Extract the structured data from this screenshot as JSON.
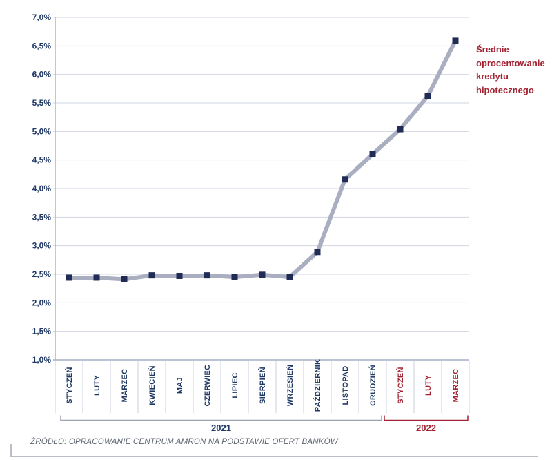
{
  "chart_data": {
    "type": "line",
    "categories": [
      "STYCZEŃ",
      "LUTY",
      "MARZEC",
      "KWIECIEŃ",
      "MAJ",
      "CZERWIEC",
      "LIPIEC",
      "SIERPIEŃ",
      "WRZESIEŃ",
      "PAŹDZIERNIK",
      "LISTOPAD",
      "GRUDZIEŃ",
      "STYCZEŃ",
      "LUTY",
      "MARZEC"
    ],
    "category_years": [
      2021,
      2021,
      2021,
      2021,
      2021,
      2021,
      2021,
      2021,
      2021,
      2021,
      2021,
      2021,
      2022,
      2022,
      2022
    ],
    "values": [
      2.44,
      2.44,
      2.41,
      2.48,
      2.47,
      2.48,
      2.45,
      2.49,
      2.45,
      2.89,
      4.16,
      4.6,
      5.04,
      5.62,
      6.59
    ],
    "series_name": "Średnie oprocentowanie kredytu hipotecznego",
    "ylim": [
      1.0,
      7.0
    ],
    "y_tick_values": [
      7.0,
      6.5,
      6.0,
      5.5,
      5.0,
      4.5,
      4.0,
      3.5,
      3.0,
      2.5,
      2.0,
      1.5,
      1.0
    ],
    "y_tick_labels": [
      "7,0%",
      "6,5%",
      "6,0%",
      "5,5%",
      "5,0%",
      "4,5%",
      "4,0%",
      "3,5%",
      "3,0%",
      "2,5%",
      "2,0%",
      "1,5%",
      "1,0%"
    ],
    "year_groups": [
      {
        "label": "2021",
        "from": 0,
        "to": 11
      },
      {
        "label": "2022",
        "from": 12,
        "to": 14
      }
    ],
    "grid": true,
    "legend_position": "right of last point"
  },
  "legend": {
    "text": "Średnie oprocentowanie kredytu hipotecznego"
  },
  "source": {
    "text": "ŹRÓDŁO: OPRACOWANIE CENTRUM AMRON NA PODSTAWIE OFERT BANKÓW"
  },
  "colors": {
    "navy_text": "#1F3864",
    "red_text": "#A32332",
    "line": "#A9AEC1",
    "marker": "#202B56",
    "gridline": "#D1D6E3",
    "axis": "#A6AFC6",
    "separator": "#C9D0DD",
    "bracket_2021": "#9BA1AE",
    "bracket_2022": "#A32332",
    "source_text": "#5D6570",
    "frame": "#B9BEC7"
  }
}
